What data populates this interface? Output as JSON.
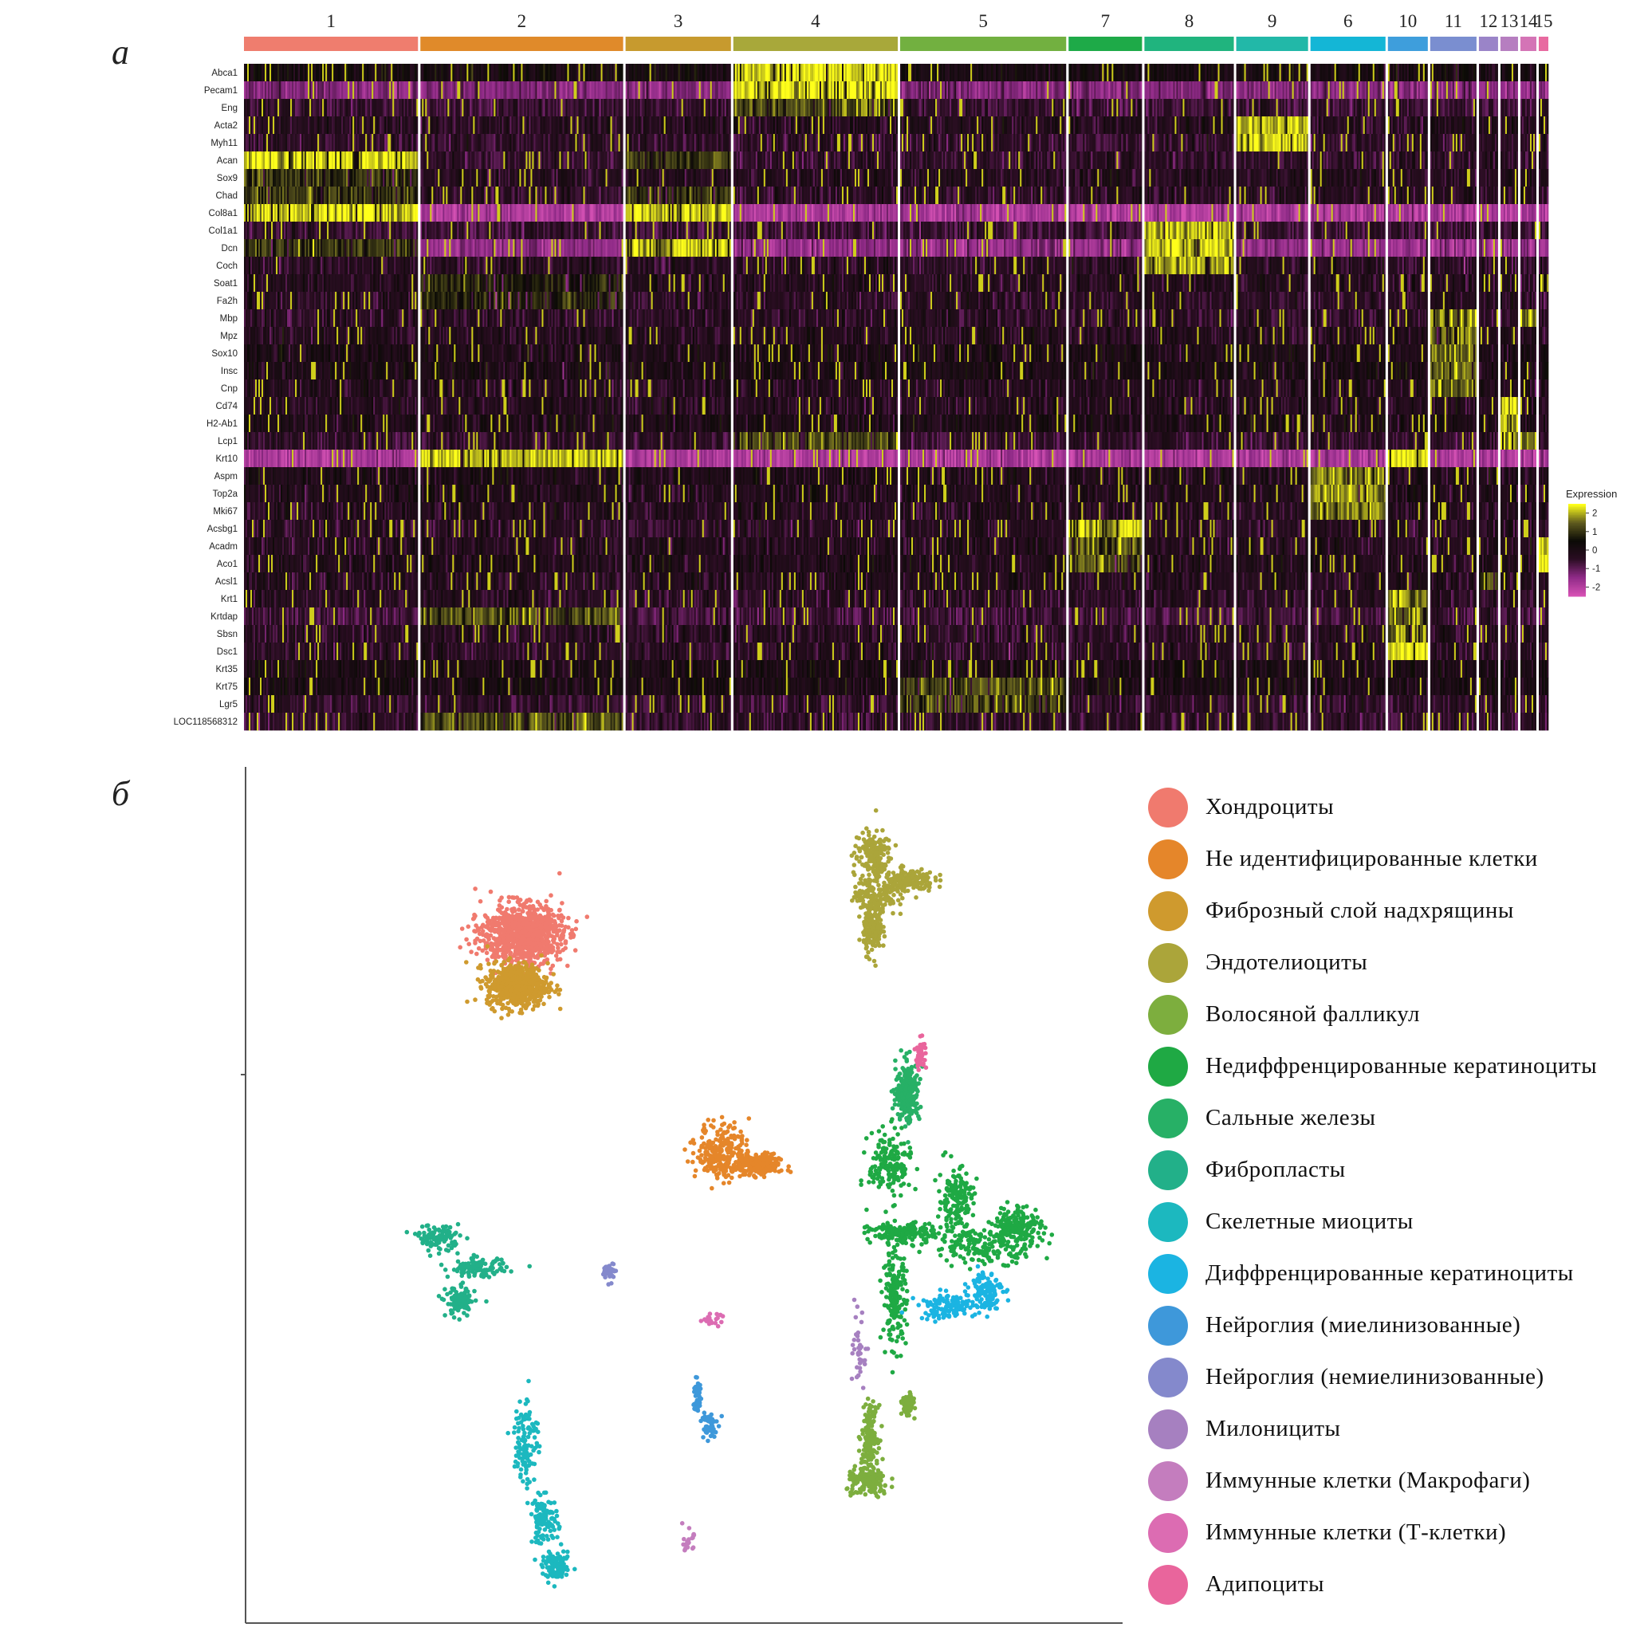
{
  "panels": {
    "a": "а",
    "b": "б"
  },
  "chart_data": [
    {
      "type": "heatmap",
      "panel": "а",
      "title": "",
      "clusters": [
        {
          "label": "1",
          "color": "#EF7D6E",
          "cells": 109
        },
        {
          "label": "2",
          "color": "#E08A2A",
          "cells": 127
        },
        {
          "label": "3",
          "color": "#C79A2E",
          "cells": 66
        },
        {
          "label": "4",
          "color": "#A8A83A",
          "cells": 103
        },
        {
          "label": "5",
          "color": "#72B040",
          "cells": 104
        },
        {
          "label": "7",
          "color": "#1EAA48",
          "cells": 46
        },
        {
          "label": "8",
          "color": "#20B47E",
          "cells": 56
        },
        {
          "label": "9",
          "color": "#22B8A8",
          "cells": 45
        },
        {
          "label": "6",
          "color": "#14B6D6",
          "cells": 47
        },
        {
          "label": "10",
          "color": "#3E9EDC",
          "cells": 25
        },
        {
          "label": "11",
          "color": "#7A8ED0",
          "cells": 29
        },
        {
          "label": "12",
          "color": "#9A84C8",
          "cells": 12
        },
        {
          "label": "13",
          "color": "#B67EC0",
          "cells": 11
        },
        {
          "label": "14",
          "color": "#D474B6",
          "cells": 10
        },
        {
          "label": "15",
          "color": "#E86AA0",
          "cells": 6
        }
      ],
      "genes": [
        "Abca1",
        "Pecam1",
        "Eng",
        "Acta2",
        "Myh11",
        "Acan",
        "Sox9",
        "Chad",
        "Col8a1",
        "Col1a1",
        "Dcn",
        "Coch",
        "Soat1",
        "Fa2h",
        "Mbp",
        "Mpz",
        "Sox10",
        "Insc",
        "Cnp",
        "Cd74",
        "H2-Ab1",
        "Lcp1",
        "Krt10",
        "Aspm",
        "Top2a",
        "Mki67",
        "Acsbg1",
        "Acadm",
        "Aco1",
        "Acsl1",
        "Krt1",
        "Krtdap",
        "Sbsn",
        "Dsc1",
        "Krt35",
        "Krt75",
        "Lgr5",
        "LOC118568312"
      ],
      "gene_baseline": {
        "Abca1": 0.1,
        "Pecam1": -1.4,
        "Eng": -0.6,
        "Acta2": -0.3,
        "Myh11": -0.5,
        "Acan": -0.5,
        "Sox9": -0.3,
        "Chad": -0.4,
        "Col8a1": -1.9,
        "Col1a1": -0.6,
        "Dcn": -1.6,
        "Coch": -0.4,
        "Soat1": -0.3,
        "Fa2h": -0.4,
        "Mbp": -0.4,
        "Mpz": -0.3,
        "Sox10": -0.1,
        "Insc": -0.05,
        "Cnp": -0.3,
        "Cd74": -0.3,
        "H2-Ab1": -0.1,
        "Lcp1": -0.5,
        "Krt10": -1.9,
        "Aspm": -0.15,
        "Top2a": -0.2,
        "Mki67": -0.3,
        "Acsbg1": -0.4,
        "Acadm": -0.3,
        "Aco1": -0.2,
        "Acsl1": -0.3,
        "Krt1": -0.4,
        "Krtdap": -0.7,
        "Sbsn": -0.4,
        "Dsc1": -0.4,
        "Krt35": -0.05,
        "Krt75": 0.0,
        "Lgr5": -0.5,
        "LOC118568312": -0.5
      },
      "high_expression": [
        {
          "cluster": "1",
          "genes": [
            "Acan",
            "Col8a1"
          ],
          "level": 2.3
        },
        {
          "cluster": "1",
          "genes": [
            "Sox9",
            "Chad",
            "Dcn"
          ],
          "level": 1.0
        },
        {
          "cluster": "2",
          "genes": [
            "Krt10"
          ],
          "level": 2.2
        },
        {
          "cluster": "2",
          "genes": [
            "Krtdap",
            "LOC118568312"
          ],
          "level": 1.3
        },
        {
          "cluster": "2",
          "genes": [
            "Fa2h",
            "Soat1"
          ],
          "level": 0.7
        },
        {
          "cluster": "3",
          "genes": [
            "Col8a1",
            "Dcn"
          ],
          "level": 2.2
        },
        {
          "cluster": "3",
          "genes": [
            "Chad",
            "Acan"
          ],
          "level": 1.0
        },
        {
          "cluster": "4",
          "genes": [
            "Abca1",
            "Pecam1"
          ],
          "level": 2.3
        },
        {
          "cluster": "4",
          "genes": [
            "Eng",
            "Lcp1"
          ],
          "level": 1.3
        },
        {
          "cluster": "5",
          "genes": [
            "Lgr5",
            "Krt75"
          ],
          "level": 1.2
        },
        {
          "cluster": "7",
          "genes": [
            "Acsbg1"
          ],
          "level": 2.2
        },
        {
          "cluster": "7",
          "genes": [
            "Acadm",
            "Aco1"
          ],
          "level": 1.3
        },
        {
          "cluster": "8",
          "genes": [
            "Col1a1",
            "Dcn",
            "Coch"
          ],
          "level": 2.1
        },
        {
          "cluster": "9",
          "genes": [
            "Acta2",
            "Myh11"
          ],
          "level": 2.2
        },
        {
          "cluster": "6",
          "genes": [
            "Aspm",
            "Top2a",
            "Mki67"
          ],
          "level": 1.7
        },
        {
          "cluster": "10",
          "genes": [
            "Krt10",
            "Dsc1"
          ],
          "level": 2.3
        },
        {
          "cluster": "10",
          "genes": [
            "Krt1",
            "Krtdap",
            "Sbsn"
          ],
          "level": 1.7
        },
        {
          "cluster": "11",
          "genes": [
            "Mpz",
            "Mbp",
            "Sox10",
            "Insc",
            "Cnp"
          ],
          "level": 1.6
        },
        {
          "cluster": "12",
          "genes": [
            "Acsl1"
          ],
          "level": 1.4
        },
        {
          "cluster": "13",
          "genes": [
            "Cd74",
            "H2-Ab1",
            "Lcp1"
          ],
          "level": 2.0
        },
        {
          "cluster": "14",
          "genes": [
            "Lcp1",
            "Mbp"
          ],
          "level": 1.8
        },
        {
          "cluster": "15",
          "genes": [
            "Soat1",
            "Aco1",
            "Acadm"
          ],
          "level": 2.2
        }
      ],
      "colorscale": {
        "title": "Expression",
        "ticks": [
          "2",
          "1",
          "0",
          "-1",
          "-2"
        ],
        "tick_values": [
          2,
          1,
          0,
          -1,
          -2
        ],
        "range": [
          -2.5,
          2.5
        ],
        "colors": [
          "#D551B4",
          "#8E2A86",
          "#2A0D22",
          "#0B0A06",
          "#5E5A1E",
          "#FFFF1A"
        ]
      }
    },
    {
      "type": "scatter",
      "panel": "б",
      "title": "",
      "xlabel": "",
      "ylabel": "",
      "xlim": [
        0,
        100
      ],
      "ylim": [
        0,
        100
      ],
      "clusters": [
        {
          "name": "Хондроциты",
          "color": "#F07A6E",
          "n": 1000,
          "blobs": [
            {
              "cx": 31.5,
              "cy": 80.5,
              "sx": 3.0,
              "sy": 2.2
            }
          ]
        },
        {
          "name": "Не идентифицированные клетки",
          "color": "#E5862A",
          "n": 520,
          "blobs": [
            {
              "cx": 54.5,
              "cy": 55.0,
              "sx": 2.0,
              "sy": 2.2
            },
            {
              "cx": 58.5,
              "cy": 53.5,
              "sx": 1.6,
              "sy": 0.8
            }
          ]
        },
        {
          "name": "Фиброзный слой надхрящины",
          "color": "#CF9A2E",
          "n": 620,
          "blobs": [
            {
              "cx": 31.0,
              "cy": 74.5,
              "sx": 2.3,
              "sy": 1.7
            }
          ]
        },
        {
          "name": "Эндотелиоциты",
          "color": "#ABA53A",
          "n": 640,
          "blobs": [
            {
              "cx": 71.5,
              "cy": 89.8,
              "sx": 1.4,
              "sy": 1.9
            },
            {
              "cx": 71.8,
              "cy": 85.0,
              "sx": 1.6,
              "sy": 1.7
            },
            {
              "cx": 75.5,
              "cy": 86.8,
              "sx": 2.0,
              "sy": 0.9
            },
            {
              "cx": 71.5,
              "cy": 81.0,
              "sx": 0.7,
              "sy": 1.8
            }
          ]
        },
        {
          "name": "Волосяной фалликул",
          "color": "#7DAE3E",
          "n": 470,
          "blobs": [
            {
              "cx": 71.0,
              "cy": 16.5,
              "sx": 1.6,
              "sy": 1.2
            },
            {
              "cx": 71.2,
              "cy": 22.0,
              "sx": 0.6,
              "sy": 2.2
            },
            {
              "cx": 75.5,
              "cy": 25.5,
              "sx": 0.4,
              "sy": 0.7
            }
          ]
        },
        {
          "name": "Недиффренцированные кератиноциты",
          "color": "#1FA944",
          "n": 1050,
          "blobs": [
            {
              "cx": 73.5,
              "cy": 53.5,
              "sx": 1.6,
              "sy": 2.6
            },
            {
              "cx": 75.0,
              "cy": 45.5,
              "sx": 2.6,
              "sy": 0.8
            },
            {
              "cx": 84.5,
              "cy": 44.0,
              "sx": 4.0,
              "sy": 1.3
            },
            {
              "cx": 88.0,
              "cy": 46.5,
              "sx": 1.8,
              "sy": 1.5
            },
            {
              "cx": 81.0,
              "cy": 49.5,
              "sx": 1.3,
              "sy": 2.4
            },
            {
              "cx": 74.0,
              "cy": 38.0,
              "sx": 0.9,
              "sy": 3.5
            }
          ]
        },
        {
          "name": "Сальные железы",
          "color": "#27B066",
          "n": 260,
          "blobs": [
            {
              "cx": 75.5,
              "cy": 62.0,
              "sx": 0.9,
              "sy": 2.3
            }
          ]
        },
        {
          "name": "Фибропласты",
          "color": "#22B089",
          "n": 330,
          "blobs": [
            {
              "cx": 22.0,
              "cy": 45.0,
              "sx": 1.6,
              "sy": 1.0
            },
            {
              "cx": 26.5,
              "cy": 41.5,
              "sx": 2.2,
              "sy": 0.7
            },
            {
              "cx": 24.5,
              "cy": 37.5,
              "sx": 1.1,
              "sy": 1.2
            }
          ]
        },
        {
          "name": "Скелетные миоциты",
          "color": "#1CB8BF",
          "n": 330,
          "blobs": [
            {
              "cx": 34.0,
              "cy": 12.0,
              "sx": 1.1,
              "sy": 1.8
            },
            {
              "cx": 32.0,
              "cy": 21.5,
              "sx": 0.9,
              "sy": 3.5
            },
            {
              "cx": 35.5,
              "cy": 6.5,
              "sx": 1.1,
              "sy": 1.0
            }
          ]
        },
        {
          "name": "Диффренцированные кератиноциты",
          "color": "#1BB4E2",
          "n": 230,
          "blobs": [
            {
              "cx": 80.0,
              "cy": 37.0,
              "sx": 2.2,
              "sy": 1.0
            },
            {
              "cx": 84.5,
              "cy": 39.0,
              "sx": 1.2,
              "sy": 1.5
            }
          ]
        },
        {
          "name": "Нейроглия (миелинизованные)",
          "color": "#3E98DA",
          "n": 110,
          "blobs": [
            {
              "cx": 52.8,
              "cy": 23.0,
              "sx": 0.6,
              "sy": 1.3
            },
            {
              "cx": 51.5,
              "cy": 26.5,
              "sx": 0.3,
              "sy": 1.3
            }
          ]
        },
        {
          "name": "Нейроглия (немиелинизованные)",
          "color": "#8489CC",
          "n": 45,
          "blobs": [
            {
              "cx": 41.5,
              "cy": 41.0,
              "sx": 0.45,
              "sy": 0.7
            }
          ]
        },
        {
          "name": "Милонициты",
          "color": "#A680C0",
          "n": 40,
          "blobs": [
            {
              "cx": 70.0,
              "cy": 31.5,
              "sx": 0.5,
              "sy": 2.8
            }
          ]
        },
        {
          "name": "Иммунные клетки (Макрофаги)",
          "color": "#C47DBE",
          "n": 22,
          "blobs": [
            {
              "cx": 50.5,
              "cy": 9.5,
              "sx": 0.4,
              "sy": 0.9
            }
          ]
        },
        {
          "name": "Иммунные клетки (Т-клетки)",
          "color": "#DC6CB2",
          "n": 22,
          "blobs": [
            {
              "cx": 53.0,
              "cy": 35.5,
              "sx": 0.8,
              "sy": 0.4
            }
          ]
        },
        {
          "name": "Адипоциты",
          "color": "#E9659C",
          "n": 45,
          "blobs": [
            {
              "cx": 77.0,
              "cy": 66.5,
              "sx": 0.4,
              "sy": 1.2
            }
          ]
        }
      ]
    }
  ]
}
